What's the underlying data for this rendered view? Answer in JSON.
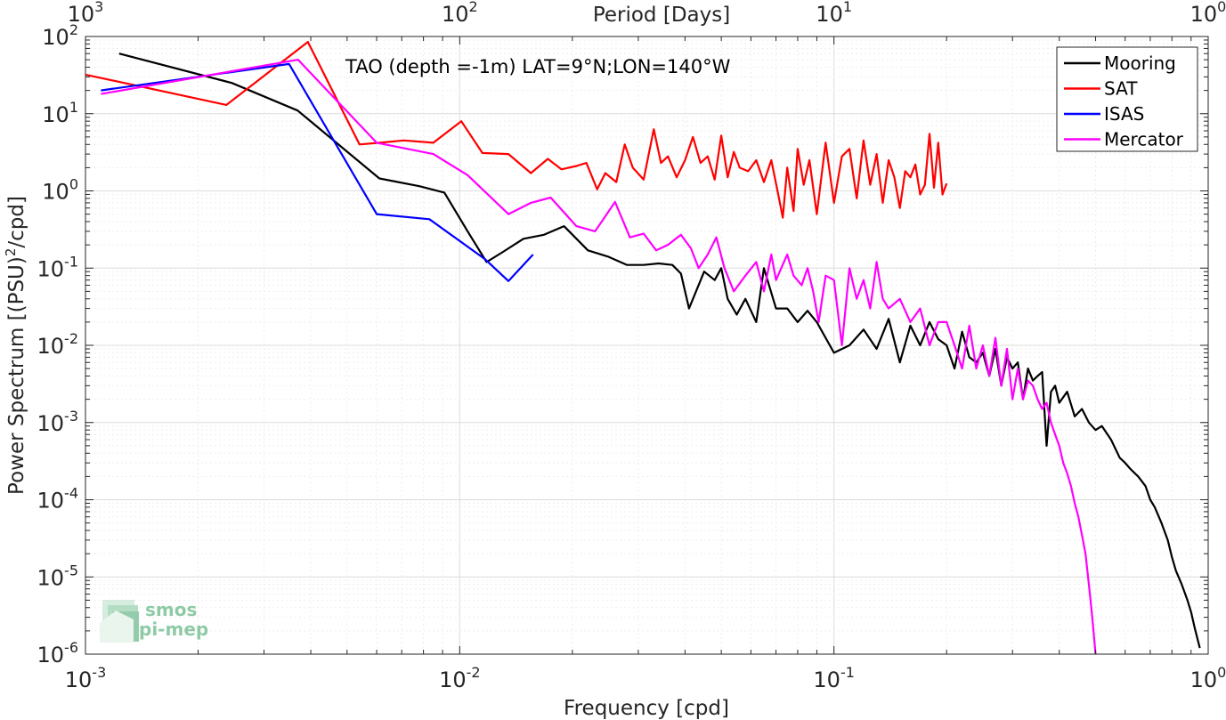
{
  "chart_data": {
    "type": "line",
    "annotation": "TAO (depth =-1m) LAT=9°N;LON=140°W",
    "xlabel": "Frequency [cpd]",
    "ylabel_main": "Power Spectrum [(PSU)",
    "ylabel_sup": "2",
    "ylabel_tail": "/cpd]",
    "top_xlabel": "Period [Days]",
    "x_scale": "log",
    "y_scale": "log",
    "xlim": [
      0.001,
      1
    ],
    "ylim": [
      1e-06,
      100
    ],
    "grid": true,
    "legend_position": "top-right",
    "x_ticks": [
      {
        "value": 0.001,
        "base": "10",
        "exp": "-3"
      },
      {
        "value": 0.01,
        "base": "10",
        "exp": "-2"
      },
      {
        "value": 0.1,
        "base": "10",
        "exp": "-1"
      },
      {
        "value": 1,
        "base": "10",
        "exp": "0"
      }
    ],
    "y_ticks": [
      {
        "value": 1e-06,
        "base": "10",
        "exp": "-6"
      },
      {
        "value": 1e-05,
        "base": "10",
        "exp": "-5"
      },
      {
        "value": 0.0001,
        "base": "10",
        "exp": "-4"
      },
      {
        "value": 0.001,
        "base": "10",
        "exp": "-3"
      },
      {
        "value": 0.01,
        "base": "10",
        "exp": "-2"
      },
      {
        "value": 0.1,
        "base": "10",
        "exp": "-1"
      },
      {
        "value": 1,
        "base": "10",
        "exp": "0"
      },
      {
        "value": 10,
        "base": "10",
        "exp": "1"
      },
      {
        "value": 100,
        "base": "10",
        "exp": "2"
      }
    ],
    "top_ticks": [
      {
        "value": 1000,
        "base": "10",
        "exp": "3"
      },
      {
        "value": 100,
        "base": "10",
        "exp": "2"
      },
      {
        "value": 10,
        "base": "10",
        "exp": "1"
      },
      {
        "value": 1,
        "base": "10",
        "exp": "0"
      }
    ],
    "series": [
      {
        "name": "Mooring",
        "color": "#000000",
        "x": [
          0.00123,
          0.00246,
          0.00369,
          0.0061,
          0.0078,
          0.0091,
          0.0105,
          0.0118,
          0.013,
          0.0148,
          0.0168,
          0.019,
          0.022,
          0.025,
          0.028,
          0.031,
          0.034,
          0.037,
          0.039,
          0.041,
          0.045,
          0.048,
          0.05,
          0.052,
          0.055,
          0.058,
          0.062,
          0.065,
          0.07,
          0.075,
          0.08,
          0.085,
          0.09,
          0.1,
          0.11,
          0.12,
          0.13,
          0.14,
          0.15,
          0.16,
          0.17,
          0.18,
          0.19,
          0.2,
          0.21,
          0.22,
          0.23,
          0.24,
          0.25,
          0.26,
          0.27,
          0.28,
          0.29,
          0.3,
          0.31,
          0.32,
          0.33,
          0.34,
          0.35,
          0.36,
          0.37,
          0.38,
          0.39,
          0.4,
          0.42,
          0.44,
          0.46,
          0.48,
          0.5,
          0.52,
          0.55,
          0.58,
          0.6,
          0.62,
          0.65,
          0.68,
          0.7,
          0.72,
          0.75,
          0.78,
          0.8,
          0.82,
          0.85,
          0.88,
          0.9,
          0.92,
          0.95
        ],
        "values": [
          60,
          25,
          11,
          1.45,
          1.15,
          0.95,
          0.3,
          0.12,
          0.16,
          0.24,
          0.27,
          0.35,
          0.17,
          0.14,
          0.11,
          0.11,
          0.115,
          0.11,
          0.085,
          0.03,
          0.09,
          0.07,
          0.1,
          0.04,
          0.025,
          0.04,
          0.02,
          0.1,
          0.03,
          0.03,
          0.02,
          0.028,
          0.02,
          0.008,
          0.01,
          0.016,
          0.009,
          0.022,
          0.006,
          0.018,
          0.01,
          0.02,
          0.012,
          0.01,
          0.005,
          0.015,
          0.007,
          0.006,
          0.008,
          0.004,
          0.009,
          0.003,
          0.007,
          0.005,
          0.006,
          0.002,
          0.005,
          0.0035,
          0.004,
          0.0045,
          0.0005,
          0.0025,
          0.003,
          0.0018,
          0.0025,
          0.0012,
          0.0015,
          0.001,
          0.0008,
          0.0009,
          0.0006,
          0.00035,
          0.0003,
          0.00025,
          0.0002,
          0.00015,
          0.0001,
          8e-05,
          5e-05,
          3e-05,
          1.8e-05,
          1.2e-05,
          8e-06,
          5e-06,
          3.5e-06,
          2.2e-06,
          1.2e-06
        ]
      },
      {
        "name": "SAT",
        "color": "#ff0000",
        "x": [
          0.001,
          0.00238,
          0.00393,
          0.0054,
          0.0061,
          0.0071,
          0.0085,
          0.0101,
          0.0115,
          0.0135,
          0.0155,
          0.0172,
          0.0187,
          0.0205,
          0.0218,
          0.0233,
          0.0245,
          0.0262,
          0.0276,
          0.029,
          0.031,
          0.033,
          0.0345,
          0.036,
          0.038,
          0.04,
          0.042,
          0.044,
          0.046,
          0.048,
          0.05,
          0.052,
          0.054,
          0.056,
          0.059,
          0.062,
          0.065,
          0.068,
          0.071,
          0.073,
          0.075,
          0.078,
          0.08,
          0.083,
          0.086,
          0.09,
          0.095,
          0.1,
          0.105,
          0.11,
          0.115,
          0.12,
          0.125,
          0.13,
          0.135,
          0.14,
          0.145,
          0.15,
          0.155,
          0.16,
          0.165,
          0.17,
          0.175,
          0.18,
          0.185,
          0.19,
          0.195,
          0.2
        ],
        "values": [
          32,
          13,
          85,
          4,
          4.2,
          4.5,
          4.2,
          8,
          3.1,
          3,
          1.7,
          2.6,
          1.9,
          2.1,
          2.3,
          1.05,
          1.7,
          1.3,
          4,
          2,
          1.4,
          6.3,
          2.3,
          2.8,
          1.5,
          2.5,
          5,
          2.3,
          2.8,
          1.4,
          5.2,
          1.5,
          3.2,
          2,
          1.8,
          2.5,
          1.3,
          2.5,
          0.9,
          0.45,
          2,
          0.55,
          3.5,
          1.2,
          2.5,
          0.5,
          4.2,
          0.7,
          2.8,
          3.5,
          0.8,
          4.5,
          1.2,
          3,
          0.7,
          2.5,
          1.5,
          0.6,
          1.8,
          1.5,
          2.2,
          0.9,
          1.2,
          5.5,
          1.1,
          4.2,
          0.9,
          1.25
        ]
      },
      {
        "name": "ISAS",
        "color": "#0000ff",
        "x": [
          0.0011,
          0.0035,
          0.006,
          0.0083,
          0.0117,
          0.0135,
          0.0157
        ],
        "values": [
          20,
          44,
          0.5,
          0.43,
          0.13,
          0.068,
          0.15
        ]
      },
      {
        "name": "Mercator",
        "color": "#ff00ff",
        "x": [
          0.0011,
          0.0037,
          0.006,
          0.0085,
          0.0105,
          0.0135,
          0.0155,
          0.0175,
          0.0205,
          0.023,
          0.026,
          0.0285,
          0.031,
          0.0335,
          0.036,
          0.039,
          0.0415,
          0.0435,
          0.046,
          0.0485,
          0.051,
          0.054,
          0.058,
          0.062,
          0.065,
          0.068,
          0.07,
          0.075,
          0.078,
          0.082,
          0.085,
          0.088,
          0.091,
          0.095,
          0.1,
          0.105,
          0.11,
          0.115,
          0.12,
          0.125,
          0.13,
          0.135,
          0.14,
          0.15,
          0.16,
          0.17,
          0.18,
          0.19,
          0.2,
          0.21,
          0.22,
          0.23,
          0.24,
          0.25,
          0.26,
          0.27,
          0.28,
          0.29,
          0.3,
          0.31,
          0.32,
          0.33,
          0.34,
          0.35,
          0.36,
          0.37,
          0.38,
          0.39,
          0.4,
          0.41,
          0.42,
          0.43,
          0.44,
          0.45,
          0.46,
          0.47,
          0.48,
          0.49,
          0.5
        ],
        "values": [
          18,
          50,
          4.2,
          3,
          1.6,
          0.5,
          0.7,
          0.82,
          0.35,
          0.3,
          0.72,
          0.25,
          0.28,
          0.17,
          0.2,
          0.27,
          0.18,
          0.1,
          0.15,
          0.25,
          0.1,
          0.05,
          0.08,
          0.12,
          0.05,
          0.15,
          0.07,
          0.15,
          0.08,
          0.06,
          0.1,
          0.05,
          0.02,
          0.08,
          0.07,
          0.01,
          0.1,
          0.04,
          0.07,
          0.03,
          0.12,
          0.04,
          0.03,
          0.04,
          0.02,
          0.03,
          0.01,
          0.02,
          0.02,
          0.01,
          0.005,
          0.018,
          0.005,
          0.01,
          0.004,
          0.0125,
          0.003,
          0.009,
          0.002,
          0.005,
          0.002,
          0.0035,
          0.003,
          0.002,
          0.0015,
          0.0018,
          0.001,
          0.0007,
          0.0005,
          0.0003,
          0.00022,
          0.00015,
          9e-05,
          6e-05,
          3.5e-05,
          2e-05,
          8e-06,
          3e-06,
          1e-06
        ]
      }
    ]
  },
  "logo": {
    "line1": "smos",
    "line2": "pi-mep"
  }
}
